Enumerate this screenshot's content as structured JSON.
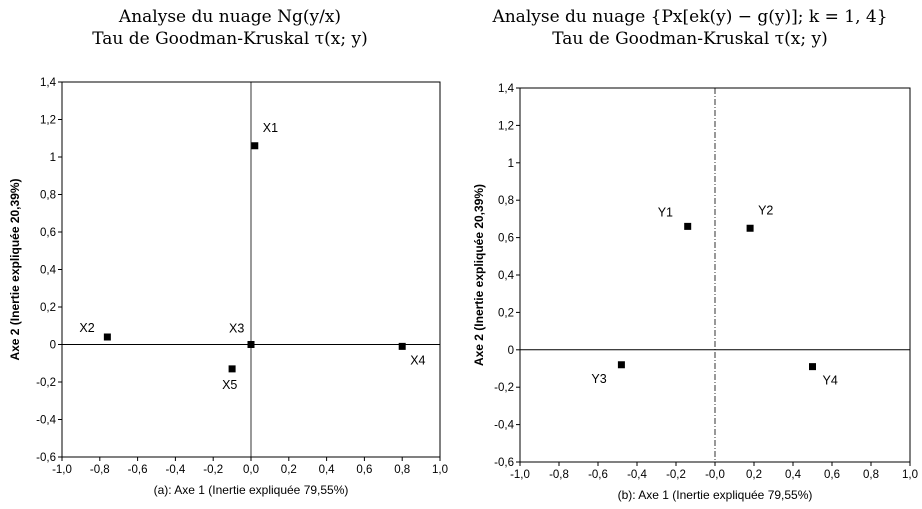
{
  "chart_data": [
    {
      "type": "scatter",
      "title": "Analyse du nuage Ng(y/x)",
      "subtitle": "Tau de Goodman-Kruskal τ(x; y)",
      "xlabel": "(a):   Axe 1 (Inertie expliquée 79,55%)",
      "ylabel": "Axe 2 (Inertie expliquée 20,39%)",
      "xlim": [
        -1.0,
        1.0
      ],
      "ylim": [
        -0.6,
        1.4
      ],
      "xticks": [
        "-1,0",
        "-0,8",
        "-0,6",
        "-0,4",
        "-0,2",
        "0,0",
        "0,2",
        "0,4",
        "0,6",
        "0,8",
        "1,0"
      ],
      "yticks": [
        "-0,6",
        "-0,4",
        "-0,2",
        "0",
        "0,2",
        "0,4",
        "0,6",
        "0,8",
        "1",
        "1,2",
        "1,4"
      ],
      "grid": false,
      "points": [
        {
          "label": "X1",
          "x": 0.02,
          "y": 1.06
        },
        {
          "label": "X2",
          "x": -0.76,
          "y": 0.04
        },
        {
          "label": "X3",
          "x": 0.0,
          "y": 0.0
        },
        {
          "label": "X4",
          "x": 0.8,
          "y": -0.01
        },
        {
          "label": "X5",
          "x": -0.1,
          "y": -0.13
        }
      ]
    },
    {
      "type": "scatter",
      "title": "Analyse du nuage {Px[ek(y) − g(y)]; k = 1, 4}",
      "subtitle": "Tau de Goodman-Kruskal τ(x; y)",
      "xlabel": "(b):   Axe 1 (Inertie expliquée 79,55%)",
      "ylabel": "Axe 2 (Inertie expliquée 20,39%)",
      "xlim": [
        -1.0,
        1.0
      ],
      "ylim": [
        -0.6,
        1.4
      ],
      "xticks": [
        "-1,0",
        "-0,8",
        "-0,6",
        "-0,4",
        "-0,2",
        "-0,0",
        "0,2",
        "0,4",
        "0,6",
        "0,8",
        "1,0"
      ],
      "yticks": [
        "-0,6",
        "-0,4",
        "-0,2",
        "0",
        "0,2",
        "0,4",
        "0,6",
        "0,8",
        "1",
        "1,2",
        "1,4"
      ],
      "grid": false,
      "points": [
        {
          "label": "Y1",
          "x": -0.14,
          "y": 0.66
        },
        {
          "label": "Y2",
          "x": 0.18,
          "y": 0.65
        },
        {
          "label": "Y3",
          "x": -0.48,
          "y": -0.08
        },
        {
          "label": "Y4",
          "x": 0.5,
          "y": -0.09
        }
      ]
    }
  ]
}
